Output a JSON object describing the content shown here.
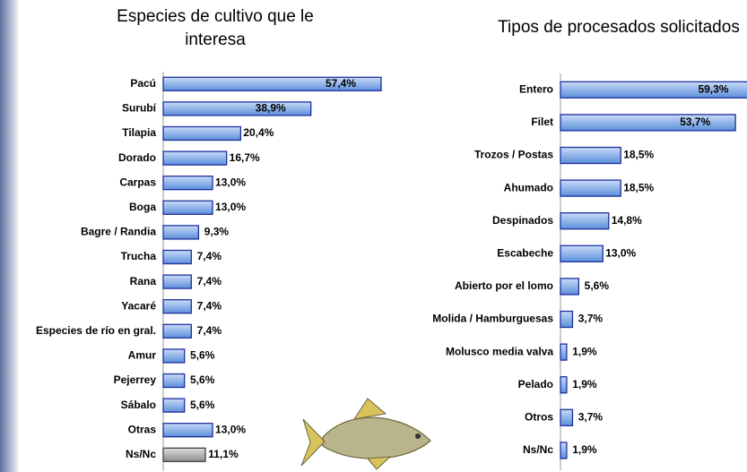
{
  "chart_data": [
    {
      "type": "barh",
      "title": "Especies de cultivo que le interesa",
      "categories": [
        "Pacú",
        "Surubí",
        "Tilapia",
        "Dorado",
        "Carpas",
        "Boga",
        "Bagre / Randia",
        "Trucha",
        "Rana",
        "Yacaré",
        "Especies de río en gral.",
        "Amur",
        "Pejerrey",
        "Sábalo",
        "Otras",
        "Ns/Nc"
      ],
      "values": [
        57.4,
        38.9,
        20.4,
        16.7,
        13.0,
        13.0,
        9.3,
        7.4,
        7.4,
        7.4,
        7.4,
        5.6,
        5.6,
        5.6,
        13.0,
        11.1
      ],
      "value_labels": [
        "57,4%",
        "38,9%",
        "20,4%",
        "16,7%",
        "13,0%",
        "13,0%",
        "9,3%",
        "7,4%",
        "7,4%",
        "7,4%",
        "7,4%",
        "5,6%",
        "5,6%",
        "5,6%",
        "13,0%",
        "11,1%"
      ],
      "colors": [
        "#5b8fdb",
        "#5b8fdb",
        "#5b8fdb",
        "#5b8fdb",
        "#5b8fdb",
        "#5b8fdb",
        "#5b8fdb",
        "#5b8fdb",
        "#5b8fdb",
        "#5b8fdb",
        "#5b8fdb",
        "#5b8fdb",
        "#5b8fdb",
        "#5b8fdb",
        "#5b8fdb",
        "#8c8c8c"
      ],
      "xlim": [
        0,
        60
      ]
    },
    {
      "type": "barh",
      "title": "Tipos de procesados solicitados",
      "categories": [
        "Entero",
        "Filet",
        "Trozos / Postas",
        "Ahumado",
        "Despinados",
        "Escabeche",
        "Abierto por el lomo",
        "Molida / Hamburguesas",
        "Molusco media valva",
        "Pelado",
        "Otros",
        "Ns/Nc"
      ],
      "values": [
        59.3,
        53.7,
        18.5,
        18.5,
        14.8,
        13.0,
        5.6,
        3.7,
        1.9,
        1.9,
        3.7,
        1.9
      ],
      "value_labels": [
        "59,3%",
        "53,7%",
        "18,5%",
        "18,5%",
        "14,8%",
        "13,0%",
        "5,6%",
        "3,7%",
        "1,9%",
        "1,9%",
        "3,7%",
        "1,9%"
      ],
      "colors": [
        "#5b8fdb",
        "#5b8fdb",
        "#5b8fdb",
        "#5b8fdb",
        "#5b8fdb",
        "#5b8fdb",
        "#5b8fdb",
        "#5b8fdb",
        "#5b8fdb",
        "#5b8fdb",
        "#5b8fdb",
        "#5b8fdb"
      ],
      "xlim": [
        0,
        60
      ]
    }
  ]
}
